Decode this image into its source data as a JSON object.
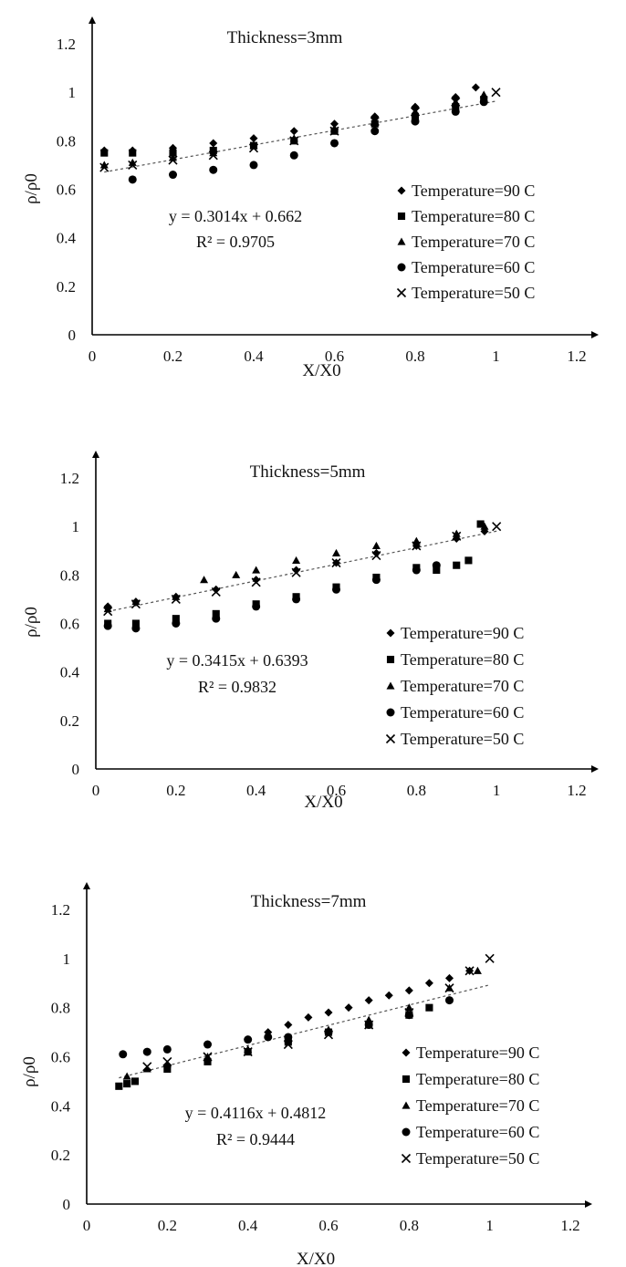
{
  "chart_data": [
    {
      "type": "scatter",
      "title": "Thickness=3mm",
      "xlabel": "X/X0",
      "ylabel": "ρ/ρ0",
      "xlim": [
        0,
        1.2
      ],
      "ylim": [
        0,
        1.2
      ],
      "x_ticks": [
        "0",
        "0.2",
        "0.4",
        "0.6",
        "0.8",
        "1",
        "1.2"
      ],
      "y_ticks": [
        "0",
        "0.2",
        "0.4",
        "0.6",
        "0.8",
        "1",
        "1.2"
      ],
      "legend_position": "right",
      "equation": "y = 0.3014x + 0.662",
      "r_squared": "R² = 0.9705",
      "trendline": {
        "slope": 0.3014,
        "intercept": 0.662,
        "x_range": [
          0.03,
          1.0
        ]
      },
      "series": [
        {
          "name": "Temperature=90 C",
          "marker": "diamond",
          "x": [
            0.03,
            0.1,
            0.2,
            0.3,
            0.4,
            0.5,
            0.6,
            0.7,
            0.8,
            0.9,
            0.95
          ],
          "y": [
            0.76,
            0.76,
            0.77,
            0.79,
            0.81,
            0.84,
            0.87,
            0.9,
            0.94,
            0.98,
            1.02
          ]
        },
        {
          "name": "Temperature=80 C",
          "marker": "square",
          "x": [
            0.03,
            0.1,
            0.2,
            0.3,
            0.4,
            0.5,
            0.6,
            0.7,
            0.8,
            0.9,
            0.97
          ],
          "y": [
            0.75,
            0.75,
            0.75,
            0.76,
            0.78,
            0.8,
            0.84,
            0.87,
            0.9,
            0.94,
            0.97
          ]
        },
        {
          "name": "Temperature=70 C",
          "marker": "triangle",
          "x": [
            0.03,
            0.1,
            0.2,
            0.3,
            0.4,
            0.5,
            0.6,
            0.7,
            0.8,
            0.9,
            0.97
          ],
          "y": [
            0.7,
            0.71,
            0.73,
            0.75,
            0.78,
            0.81,
            0.85,
            0.88,
            0.92,
            0.96,
            0.99
          ]
        },
        {
          "name": "Temperature=60 C",
          "marker": "circle",
          "x": [
            0.1,
            0.2,
            0.3,
            0.4,
            0.5,
            0.6,
            0.7,
            0.8,
            0.9,
            0.97
          ],
          "y": [
            0.64,
            0.66,
            0.68,
            0.7,
            0.74,
            0.79,
            0.84,
            0.88,
            0.92,
            0.96
          ]
        },
        {
          "name": "Temperature=50 C",
          "marker": "cross",
          "x": [
            0.03,
            0.1,
            0.2,
            0.3,
            0.4,
            0.5,
            0.6,
            0.7,
            0.8,
            0.9,
            1.0
          ],
          "y": [
            0.69,
            0.7,
            0.72,
            0.74,
            0.77,
            0.8,
            0.84,
            0.88,
            0.92,
            0.96,
            1.0
          ]
        }
      ]
    },
    {
      "type": "scatter",
      "title": "Thickness=5mm",
      "xlabel": "X/X0",
      "ylabel": "ρ/ρ0",
      "xlim": [
        0,
        1.2
      ],
      "ylim": [
        0,
        1.2
      ],
      "x_ticks": [
        "0",
        "0.2",
        "0.4",
        "0.6",
        "0.8",
        "1",
        "1.2"
      ],
      "y_ticks": [
        "0",
        "0.2",
        "0.4",
        "0.6",
        "0.8",
        "1",
        "1.2"
      ],
      "legend_position": "right",
      "equation": "y = 0.3415x + 0.6393",
      "r_squared": "R² = 0.9832",
      "trendline": {
        "slope": 0.3415,
        "intercept": 0.6393,
        "x_range": [
          0.03,
          1.0
        ]
      },
      "series": [
        {
          "name": "Temperature=90 C",
          "marker": "diamond",
          "x": [
            0.03,
            0.1,
            0.2,
            0.3,
            0.4,
            0.5,
            0.6,
            0.7,
            0.8,
            0.9,
            0.97
          ],
          "y": [
            0.67,
            0.69,
            0.71,
            0.74,
            0.78,
            0.82,
            0.85,
            0.89,
            0.92,
            0.95,
            0.98
          ]
        },
        {
          "name": "Temperature=80 C",
          "marker": "square",
          "x": [
            0.03,
            0.1,
            0.2,
            0.3,
            0.4,
            0.5,
            0.6,
            0.7,
            0.8,
            0.85,
            0.9,
            0.93,
            0.96
          ],
          "y": [
            0.6,
            0.6,
            0.62,
            0.64,
            0.68,
            0.71,
            0.75,
            0.79,
            0.83,
            0.82,
            0.84,
            0.86,
            1.01
          ]
        },
        {
          "name": "Temperature=70 C",
          "marker": "triangle",
          "x": [
            0.03,
            0.1,
            0.2,
            0.27,
            0.35,
            0.4,
            0.5,
            0.6,
            0.7,
            0.8,
            0.9,
            0.97
          ],
          "y": [
            0.66,
            0.69,
            0.71,
            0.78,
            0.8,
            0.82,
            0.86,
            0.89,
            0.92,
            0.94,
            0.97,
            1.0
          ]
        },
        {
          "name": "Temperature=60 C",
          "marker": "circle",
          "x": [
            0.03,
            0.1,
            0.2,
            0.3,
            0.4,
            0.5,
            0.6,
            0.7,
            0.8,
            0.85
          ],
          "y": [
            0.59,
            0.58,
            0.6,
            0.62,
            0.67,
            0.7,
            0.74,
            0.78,
            0.82,
            0.84
          ]
        },
        {
          "name": "Temperature=50 C",
          "marker": "cross",
          "x": [
            0.03,
            0.1,
            0.2,
            0.3,
            0.4,
            0.5,
            0.6,
            0.7,
            0.8,
            0.9,
            1.0
          ],
          "y": [
            0.65,
            0.68,
            0.7,
            0.73,
            0.77,
            0.81,
            0.85,
            0.88,
            0.92,
            0.96,
            1.0
          ]
        }
      ]
    },
    {
      "type": "scatter",
      "title": "Thickness=7mm",
      "xlabel": "X/X0",
      "ylabel": "ρ/ρ0",
      "xlim": [
        0,
        1.2
      ],
      "ylim": [
        0,
        1.2
      ],
      "x_ticks": [
        "0",
        "0.2",
        "0.4",
        "0.6",
        "0.8",
        "1",
        "1.2"
      ],
      "y_ticks": [
        "0",
        "0.2",
        "0.4",
        "0.6",
        "0.8",
        "1",
        "1.2"
      ],
      "legend_position": "right",
      "equation": "y = 0.4116x + 0.4812",
      "r_squared": "R² = 0.9444",
      "trendline": {
        "slope": 0.4116,
        "intercept": 0.4812,
        "x_range": [
          0.08,
          1.0
        ]
      },
      "series": [
        {
          "name": "Temperature=90 C",
          "marker": "diamond",
          "x": [
            0.45,
            0.5,
            0.55,
            0.6,
            0.65,
            0.7,
            0.75,
            0.8,
            0.85,
            0.9,
            0.95
          ],
          "y": [
            0.7,
            0.73,
            0.76,
            0.78,
            0.8,
            0.83,
            0.85,
            0.87,
            0.9,
            0.92,
            0.95
          ]
        },
        {
          "name": "Temperature=80 C",
          "marker": "square",
          "x": [
            0.08,
            0.1,
            0.12,
            0.2,
            0.3,
            0.4,
            0.5,
            0.6,
            0.7,
            0.8,
            0.85
          ],
          "y": [
            0.48,
            0.49,
            0.5,
            0.55,
            0.58,
            0.62,
            0.66,
            0.7,
            0.73,
            0.77,
            0.8
          ]
        },
        {
          "name": "Temperature=70 C",
          "marker": "triangle",
          "x": [
            0.1,
            0.15,
            0.2,
            0.3,
            0.4,
            0.5,
            0.6,
            0.7,
            0.8,
            0.9,
            0.97
          ],
          "y": [
            0.52,
            0.55,
            0.57,
            0.6,
            0.63,
            0.67,
            0.71,
            0.75,
            0.8,
            0.88,
            0.95
          ]
        },
        {
          "name": "Temperature=60 C",
          "marker": "circle",
          "x": [
            0.09,
            0.15,
            0.2,
            0.3,
            0.4,
            0.45,
            0.5,
            0.6,
            0.7,
            0.8,
            0.9
          ],
          "y": [
            0.61,
            0.62,
            0.63,
            0.65,
            0.67,
            0.68,
            0.68,
            0.7,
            0.73,
            0.77,
            0.83
          ]
        },
        {
          "name": "Temperature=50 C",
          "marker": "cross",
          "x": [
            0.15,
            0.2,
            0.3,
            0.4,
            0.5,
            0.6,
            0.7,
            0.8,
            0.9,
            0.95,
            1.0
          ],
          "y": [
            0.56,
            0.58,
            0.6,
            0.62,
            0.65,
            0.69,
            0.73,
            0.78,
            0.88,
            0.95,
            1.0
          ]
        }
      ]
    }
  ]
}
